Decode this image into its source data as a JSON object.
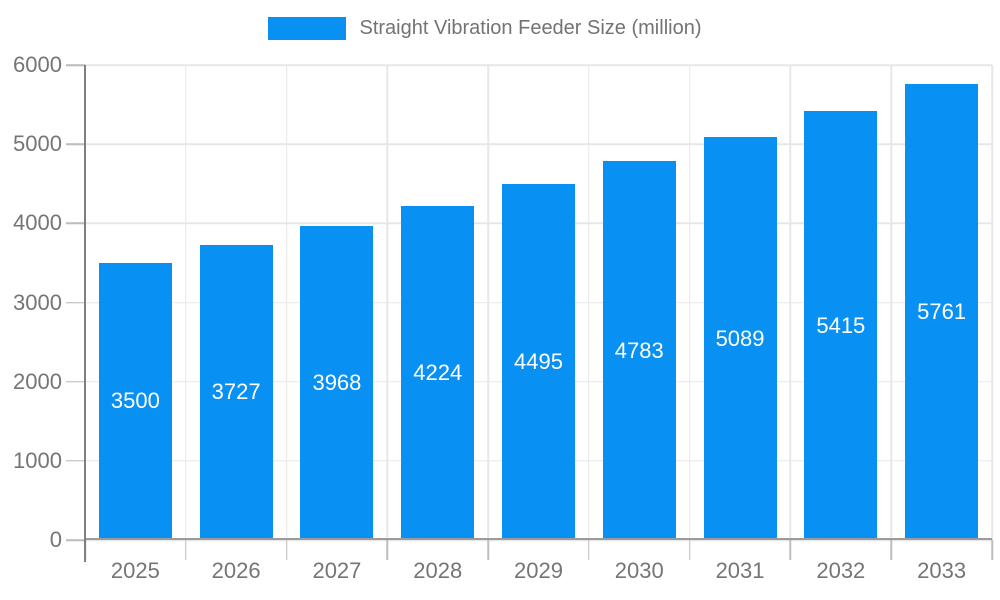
{
  "chart_data": {
    "type": "bar",
    "title": "Straight Vibration Feeder Size (million)",
    "categories": [
      "2025",
      "2026",
      "2027",
      "2028",
      "2029",
      "2030",
      "2031",
      "2032",
      "2033"
    ],
    "values": [
      3500,
      3727,
      3968,
      4224,
      4495,
      4783,
      5089,
      5415,
      5761
    ],
    "xlabel": "",
    "ylabel": "",
    "ylim": [
      0,
      6000
    ],
    "yticks": [
      0,
      1000,
      2000,
      3000,
      4000,
      5000,
      6000
    ],
    "grid": true,
    "legend_position": "top-center",
    "bar_labels_visible": true,
    "colors": {
      "bar": "#0890f2",
      "bar_label": "#ffffff",
      "axis_text": "#757575",
      "legend_text": "#737373",
      "gridline": "#e7e7e7",
      "tick": "#bdbdbd",
      "x_axis_line": "#9b9b9b",
      "y_axis_line": "#7f7f7f",
      "background": "#ffffff"
    }
  }
}
